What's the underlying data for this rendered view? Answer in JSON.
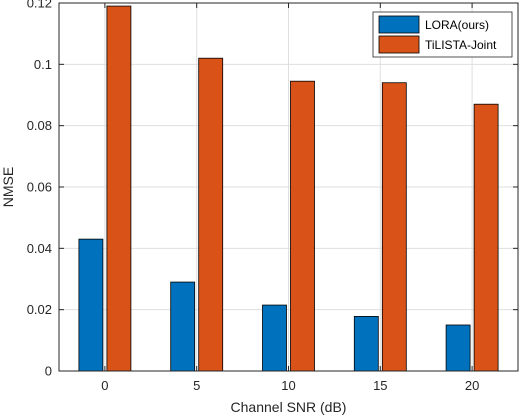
{
  "chart_data": {
    "type": "bar",
    "categories": [
      "0",
      "5",
      "10",
      "15",
      "20"
    ],
    "series": [
      {
        "name": "LORA(ours)",
        "values": [
          0.043,
          0.029,
          0.0215,
          0.0178,
          0.015
        ],
        "color": "#0072BD"
      },
      {
        "name": "TiLISTA-Joint",
        "values": [
          0.119,
          0.102,
          0.0945,
          0.094,
          0.087
        ],
        "color": "#D95319"
      }
    ],
    "title": "",
    "xlabel": "Channel SNR (dB)",
    "ylabel": "NMSE",
    "ylim": [
      0,
      0.12
    ],
    "yticks": [
      "0",
      "0.02",
      "0.04",
      "0.06",
      "0.08",
      "0.1",
      "0.12"
    ],
    "grid": true,
    "legend_position": "top-right"
  }
}
